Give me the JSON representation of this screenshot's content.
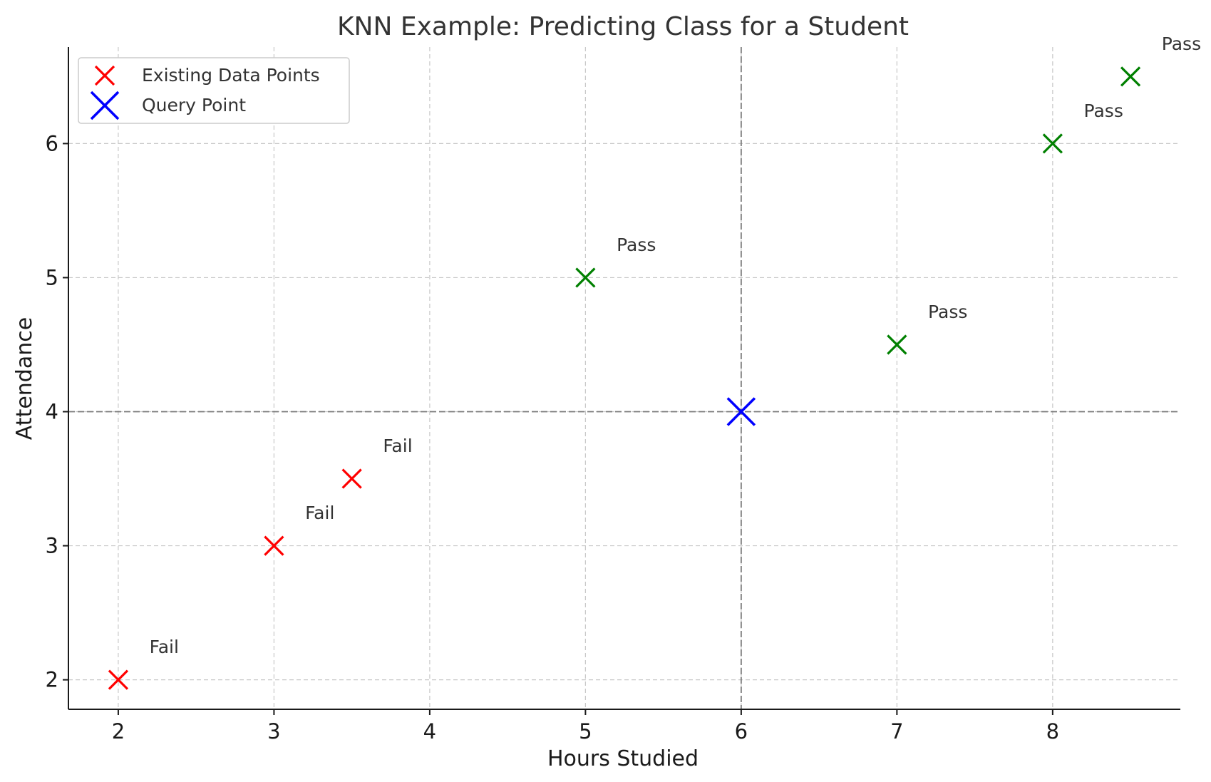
{
  "chart_data": {
    "type": "scatter",
    "title": "KNN Example: Predicting Class for a Student",
    "xlabel": "Hours Studied",
    "ylabel": "Attendance",
    "xlim": [
      1.68,
      8.82
    ],
    "ylim": [
      1.78,
      6.72
    ],
    "xticks": [
      2,
      3,
      4,
      5,
      6,
      7,
      8
    ],
    "yticks": [
      2,
      3,
      4,
      5,
      6
    ],
    "grid": true,
    "legend_position": "top-left",
    "colors": {
      "fail": "#ff0000",
      "pass": "#008000",
      "query": "#0000ff"
    },
    "series": [
      {
        "name": "Existing Data Points",
        "marker": "x",
        "color": "#ff0000",
        "points": [
          {
            "x": 2,
            "y": 2,
            "label": "Fail",
            "color": "#ff0000"
          },
          {
            "x": 3,
            "y": 3,
            "label": "Fail",
            "color": "#ff0000"
          },
          {
            "x": 3.5,
            "y": 3.5,
            "label": "Fail",
            "color": "#ff0000"
          },
          {
            "x": 5,
            "y": 5,
            "label": "Pass",
            "color": "#008000"
          },
          {
            "x": 7,
            "y": 4.5,
            "label": "Pass",
            "color": "#008000"
          },
          {
            "x": 8,
            "y": 6,
            "label": "Pass",
            "color": "#008000"
          },
          {
            "x": 8.5,
            "y": 6.5,
            "label": "Pass",
            "color": "#008000"
          }
        ]
      },
      {
        "name": "Query Point",
        "marker": "x",
        "color": "#0000ff",
        "points": [
          {
            "x": 6,
            "y": 4
          }
        ]
      }
    ],
    "reference_lines": {
      "vertical_x": 6,
      "horizontal_y": 4
    }
  }
}
